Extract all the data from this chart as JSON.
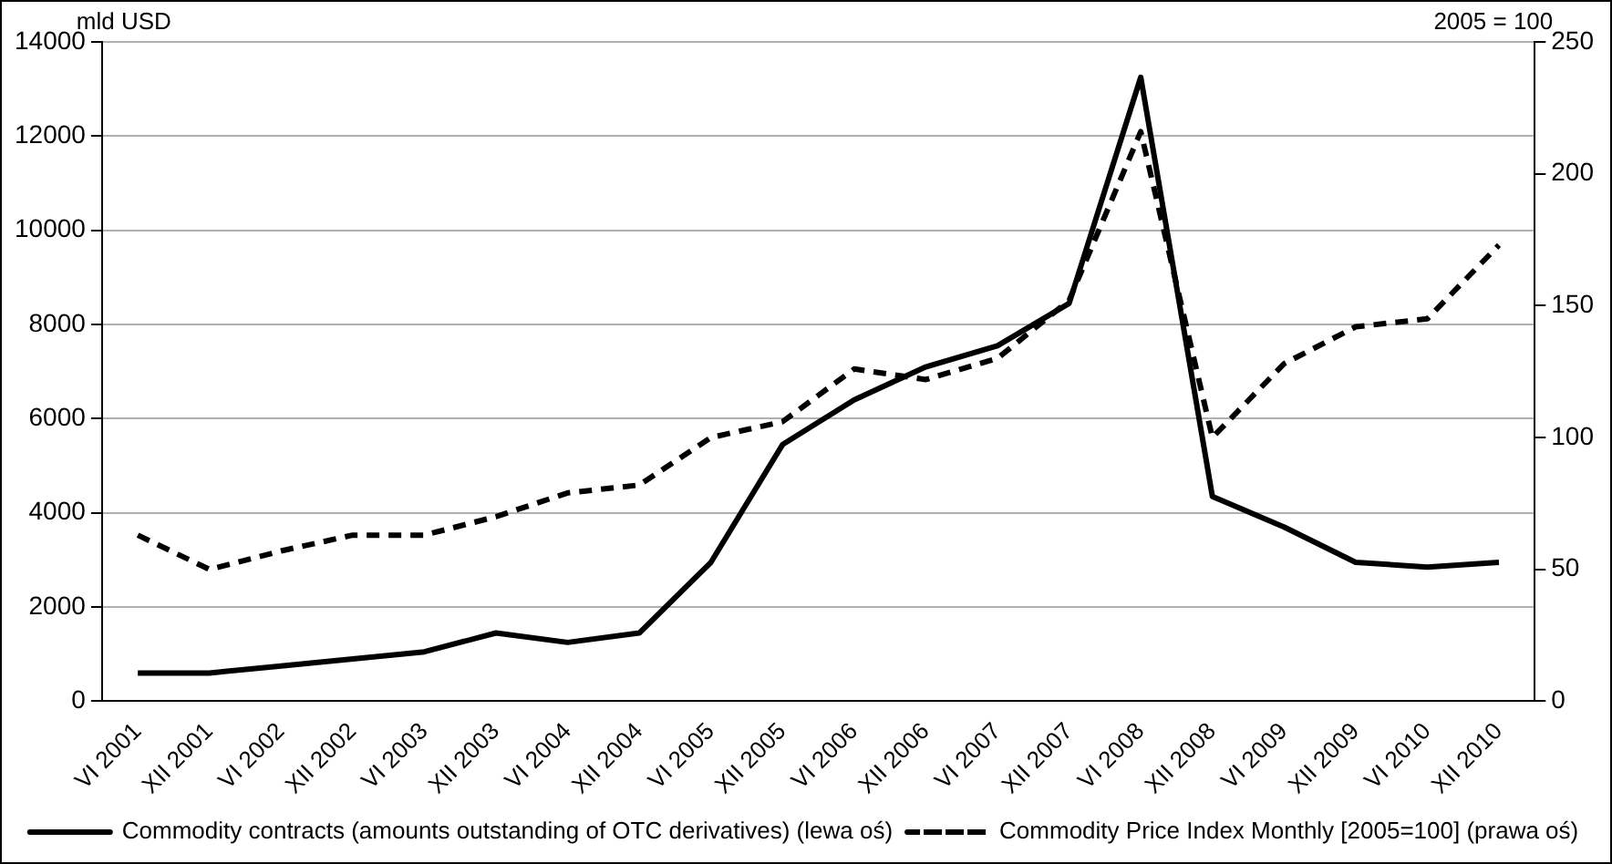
{
  "chart_data": {
    "type": "line",
    "ylabel": "mld USD",
    "y2label": "2005 = 100",
    "categories": [
      "VI 2001",
      "XII 2001",
      "VI 2002",
      "XII 2002",
      "VI 2003",
      "XII 2003",
      "VI 2004",
      "XII 2004",
      "VI 2005",
      "XII 2005",
      "VI 2006",
      "XII 2006",
      "VI 2007",
      "XII 2007",
      "VI 2008",
      "XII 2008",
      "VI 2009",
      "XII 2009",
      "VI 2010",
      "XII 2010"
    ],
    "series": [
      {
        "name": "Commodity contracts (amounts outstanding of OTC derivatives) (lewa oś)",
        "color": "#000000",
        "line_style": "solid",
        "values": [
          600,
          600,
          750,
          900,
          1050,
          1450,
          1250,
          1450,
          2950,
          5450,
          6400,
          7100,
          7550,
          8450,
          13250,
          4350,
          3700,
          2950,
          2850,
          2950
        ]
      },
      {
        "name": "Commodity Price Index Monthly [2005=100] (prawa oś)",
        "color": "#000000",
        "line_style": "dashed",
        "axis": "y2",
        "values": [
          63,
          50,
          57,
          63,
          63,
          70,
          79,
          82,
          100,
          106,
          126,
          122,
          130,
          152,
          216,
          100,
          128,
          142,
          145,
          173
        ]
      }
    ],
    "ylim": [
      0,
      14000
    ],
    "yticks": [
      0,
      2000,
      4000,
      6000,
      8000,
      10000,
      12000,
      14000
    ],
    "y2lim": [
      0,
      250
    ],
    "y2ticks": [
      0,
      50,
      100,
      150,
      200,
      250
    ],
    "grid": "y",
    "legend": "bottom",
    "marker": "none"
  }
}
